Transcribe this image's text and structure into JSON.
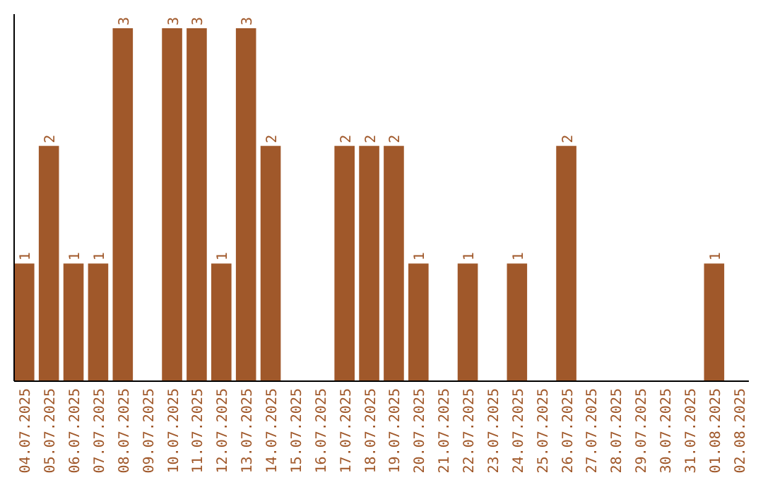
{
  "chart_data": {
    "type": "bar",
    "categories": [
      "04.07.2025",
      "05.07.2025",
      "06.07.2025",
      "07.07.2025",
      "08.07.2025",
      "09.07.2025",
      "10.07.2025",
      "11.07.2025",
      "12.07.2025",
      "13.07.2025",
      "14.07.2025",
      "15.07.2025",
      "16.07.2025",
      "17.07.2025",
      "18.07.2025",
      "19.07.2025",
      "20.07.2025",
      "21.07.2025",
      "22.07.2025",
      "23.07.2025",
      "24.07.2025",
      "25.07.2025",
      "26.07.2025",
      "27.07.2025",
      "28.07.2025",
      "29.07.2025",
      "30.07.2025",
      "31.07.2025",
      "01.08.2025",
      "02.08.2025"
    ],
    "values": [
      1,
      2,
      1,
      1,
      3,
      0,
      3,
      3,
      1,
      3,
      2,
      0,
      0,
      2,
      2,
      2,
      1,
      0,
      1,
      0,
      1,
      0,
      2,
      0,
      0,
      0,
      0,
      0,
      1,
      0
    ],
    "value_labels": [
      "1",
      "2",
      "1",
      "1",
      "3",
      null,
      "3",
      "3",
      "1",
      "3",
      "2",
      null,
      null,
      "2",
      "2",
      "2",
      "1",
      null,
      "1",
      null,
      "1",
      null,
      "2",
      null,
      null,
      null,
      null,
      null,
      "1",
      null
    ],
    "color": "#a0582a",
    "tick_labels": "x"
  }
}
